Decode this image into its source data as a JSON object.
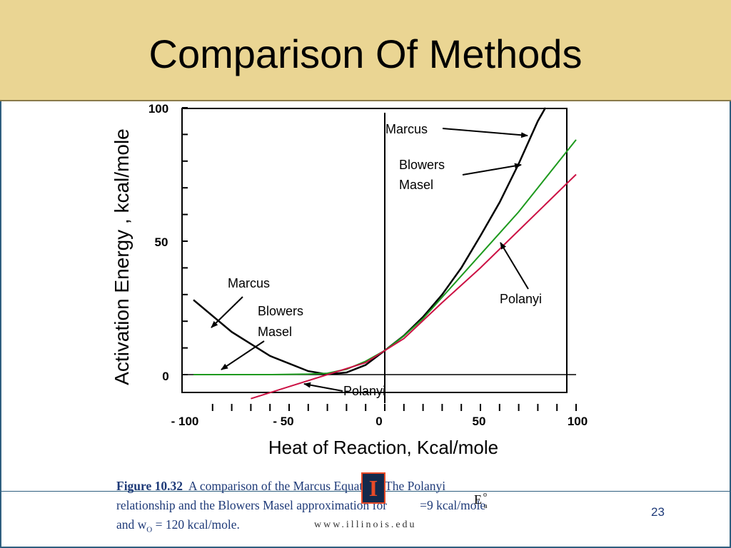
{
  "slide": {
    "title": "Comparison Of Methods",
    "slide_number": "23",
    "footer_url": "www.illinois.edu",
    "logo_letter": "I",
    "caption": {
      "label": "Figure 10.32",
      "line1_rest": "A comparison of the Marcus Equation, The Polanyi",
      "line2_a": "relationship and the Blowers Masel approximation for",
      "symbol": "E",
      "symbol_sup": "o",
      "symbol_sub": "a",
      "line2_b": "=9 kcal/mole",
      "line3_a": "and w",
      "line3_sub": "O",
      "line3_b": "= 120 kcal/mole."
    }
  },
  "colors": {
    "marcus": "#000000",
    "blowers_masel": "#1e9a1e",
    "polanyi": "#cc1144",
    "header_bg": "#ead593",
    "caption": "#1e3a78"
  },
  "chart_data": {
    "type": "line",
    "xlabel": "Heat of Reaction, Kcal/mole",
    "ylabel": "Activation Energy , kcal/mole",
    "xlim": [
      -100,
      100
    ],
    "ylim": [
      -10,
      100
    ],
    "x_ticks": [
      "- 100",
      "- 50",
      "0",
      "50",
      "100"
    ],
    "y_ticks": [
      "100",
      "50",
      "0"
    ],
    "series": [
      {
        "name": "Marcus",
        "color": "#000000",
        "x": [
          -100,
          -80,
          -60,
          -40,
          -30,
          -20,
          -10,
          0,
          10,
          20,
          30,
          40,
          50,
          60,
          70,
          80,
          84
        ],
        "y": [
          28,
          16,
          7,
          1.3,
          0.1,
          0.8,
          3.6,
          9,
          14.6,
          21.6,
          30,
          40,
          52,
          64.5,
          79,
          95,
          100
        ]
      },
      {
        "name": "Blowers Masel",
        "color": "#1e9a1e",
        "x": [
          -100,
          -60,
          -40,
          -30,
          -20,
          -10,
          0,
          10,
          20,
          30,
          40,
          50,
          60,
          70,
          80,
          90,
          100
        ],
        "y": [
          0,
          0,
          0.2,
          0.5,
          2,
          5,
          9,
          14.5,
          21,
          29,
          37,
          45,
          53,
          61,
          70,
          79,
          88
        ]
      },
      {
        "name": "Polanyi",
        "color": "#cc1144",
        "x": [
          -70,
          -50,
          -30,
          -10,
          0,
          10,
          30,
          50,
          70,
          100
        ],
        "y": [
          -9,
          -4.5,
          0,
          4.5,
          9,
          13.5,
          27,
          40,
          54,
          75
        ]
      }
    ],
    "annotations": [
      "Marcus",
      "Blowers",
      "Masel",
      "Polanyi"
    ]
  }
}
